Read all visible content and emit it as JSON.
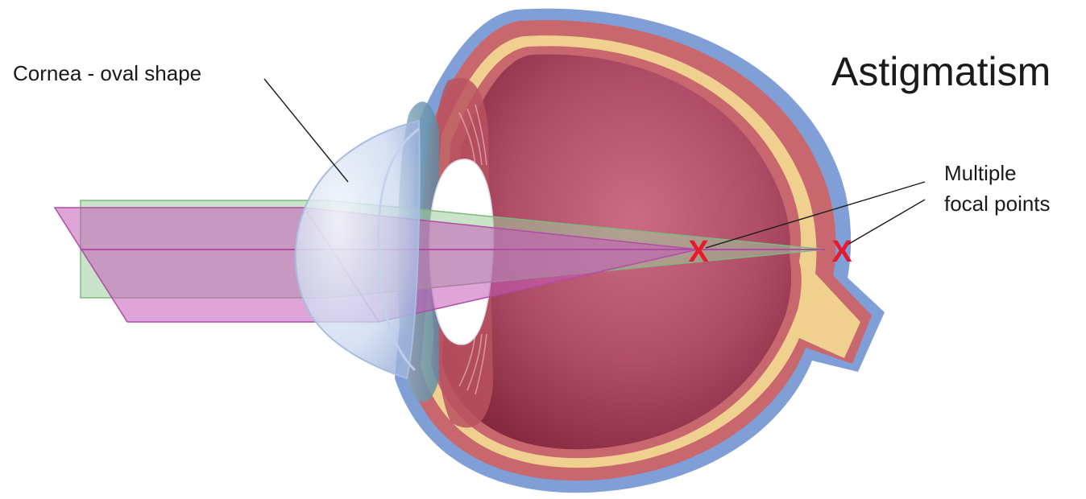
{
  "title": "Astigmatism",
  "labels": {
    "cornea": "Cornea - oval shape",
    "focal_line1": "Multiple",
    "focal_line2": "focal points"
  },
  "focal_marks": {
    "first": "X",
    "second": "X"
  },
  "colors": {
    "sclera_outer": "#7f9fd6",
    "choroid": "#c8686e",
    "retina": "#f0d08e",
    "vitreous_center": "#c4627c",
    "vitreous_edge": "#8a2e44",
    "cornea": "#d9e4f3",
    "lens": "#ffffff",
    "beam_green": "#9fce9e",
    "beam_purple": "#c45ab8",
    "focal_mark": "#e8192c",
    "leader_line": "#1a1a1a"
  }
}
